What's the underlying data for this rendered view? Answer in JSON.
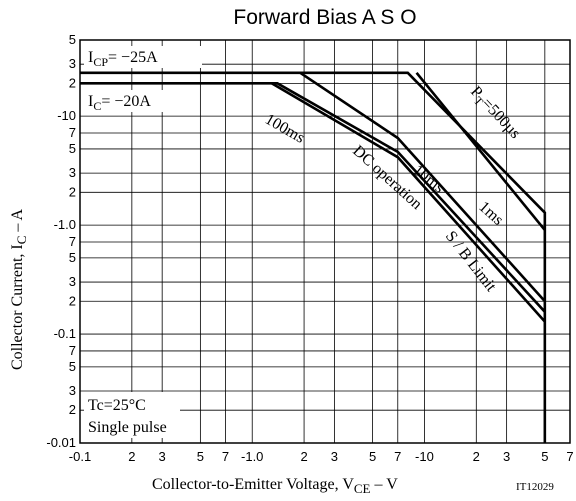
{
  "chart_data": {
    "type": "line",
    "title": "Forward Bias A S O",
    "x_label": [
      "Collector-to-Emitter Voltage, V",
      "CE",
      " – V"
    ],
    "y_label": [
      "Collector Current, I",
      "C",
      " – A"
    ],
    "log_x": true,
    "log_y": true,
    "grid": true,
    "color": "#000000",
    "xlim": [
      0.1,
      70
    ],
    "ylim": [
      0.01,
      50
    ],
    "xticks": [
      {
        "value": 0.1,
        "label": "-0.1"
      },
      {
        "value": 0.2,
        "label": "2"
      },
      {
        "value": 0.3,
        "label": "3"
      },
      {
        "value": 0.5,
        "label": "5"
      },
      {
        "value": 0.7,
        "label": "7"
      },
      {
        "value": 1,
        "label": "-1.0"
      },
      2,
      3,
      5,
      7,
      {
        "value": 10,
        "label": "-10"
      },
      {
        "value": 20,
        "label": "2"
      },
      {
        "value": 30,
        "label": "3"
      },
      {
        "value": 50,
        "label": "5"
      },
      {
        "value": 70,
        "label": "7"
      }
    ],
    "yticks": [
      {
        "value": 0.01,
        "label": "-0.01"
      },
      {
        "value": 0.02,
        "label": "2"
      },
      {
        "value": 0.03,
        "label": "3"
      },
      {
        "value": 0.05,
        "label": "5"
      },
      {
        "value": 0.07,
        "label": "7"
      },
      {
        "value": 0.1,
        "label": "-0.1"
      },
      {
        "value": 0.2,
        "label": "2"
      },
      {
        "value": 0.3,
        "label": "3"
      },
      {
        "value": 0.5,
        "label": "5"
      },
      {
        "value": 0.7,
        "label": "7"
      },
      {
        "value": 1,
        "label": "-1.0"
      },
      2,
      3,
      5,
      7,
      {
        "value": 10,
        "label": "-10"
      },
      {
        "value": 20,
        "label": "2"
      },
      {
        "value": 30,
        "label": "3"
      },
      {
        "value": 50,
        "label": "5"
      }
    ],
    "series": [
      {
        "x": [
          0.1,
          8,
          50,
          50
        ],
        "values": [
          25,
          25,
          1.3,
          0.01
        ]
      },
      {
        "x": [
          9,
          50
        ],
        "values": [
          25,
          0.9
        ]
      },
      {
        "x": [
          1.9,
          7,
          50
        ],
        "values": [
          25,
          6.3,
          0.2
        ]
      },
      {
        "x": [
          0.1,
          1.4,
          7,
          50
        ],
        "values": [
          20,
          20,
          4.7,
          0.16
        ]
      },
      {
        "x": [
          1.3,
          7,
          50
        ],
        "values": [
          20,
          4.2,
          0.13
        ]
      }
    ],
    "annotations": {
      "icp": [
        "I",
        "CP",
        "= −25A"
      ],
      "ic": [
        "I",
        "C",
        "= −20A"
      ],
      "t100ms": "100ms",
      "dc": "DC operation",
      "t10ms": "10ms",
      "t1ms": "1ms",
      "pt": [
        "P",
        "T",
        "=500µs"
      ],
      "sb": "S / B Limit",
      "tc": "Tc=25°C",
      "pulse": "Single pulse",
      "code": "IT12029"
    }
  }
}
